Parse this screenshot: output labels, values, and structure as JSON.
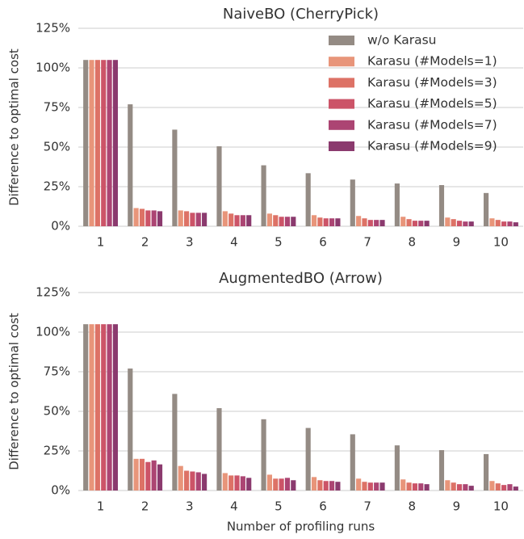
{
  "chart_data": [
    {
      "type": "bar",
      "title": "NaiveBO (CherryPick)",
      "ylabel": "Difference to optimal cost",
      "categories": [
        "1",
        "2",
        "3",
        "4",
        "5",
        "6",
        "7",
        "8",
        "9",
        "10"
      ],
      "series": [
        {
          "name": "w/o Karasu",
          "color": "#948b84",
          "values": [
            105,
            77,
            61,
            50.5,
            38.5,
            33.5,
            29.5,
            27,
            26,
            21
          ]
        },
        {
          "name": "Karasu (#Models=1)",
          "color": "#e8957a",
          "values": [
            105,
            11.5,
            10,
            9.5,
            8,
            7,
            6.5,
            6,
            5.5,
            5
          ]
        },
        {
          "name": "Karasu (#Models=3)",
          "color": "#dd7266",
          "values": [
            105,
            11,
            9.5,
            8,
            7,
            5.5,
            5,
            4.5,
            4.5,
            4
          ]
        },
        {
          "name": "Karasu (#Models=5)",
          "color": "#cc5468",
          "values": [
            105,
            10,
            8.5,
            7,
            6,
            5,
            4,
            3.5,
            3.5,
            3
          ]
        },
        {
          "name": "Karasu (#Models=7)",
          "color": "#ac4573",
          "values": [
            105,
            10,
            8.5,
            7,
            6,
            5,
            4,
            3.5,
            3,
            3
          ]
        },
        {
          "name": "Karasu (#Models=9)",
          "color": "#8b3a6e",
          "values": [
            105,
            9.5,
            8.5,
            7,
            6,
            5,
            4,
            3.5,
            3,
            2.5
          ]
        }
      ],
      "ylim": [
        0,
        125
      ],
      "yticks": [
        {
          "value": 0,
          "label": "0%"
        },
        {
          "value": 25,
          "label": "25%"
        },
        {
          "value": 50,
          "label": "50%"
        },
        {
          "value": 75,
          "label": "75%"
        },
        {
          "value": 100,
          "label": "100%"
        },
        {
          "value": 125,
          "label": "125%"
        }
      ],
      "grid": true,
      "legend": "upper right"
    },
    {
      "type": "bar",
      "title": "AugmentedBO (Arrow)",
      "ylabel": "Difference to optimal cost",
      "xlabel": "Number of profiling runs",
      "categories": [
        "1",
        "2",
        "3",
        "4",
        "5",
        "6",
        "7",
        "8",
        "9",
        "10"
      ],
      "series": [
        {
          "color": "#948b84",
          "values": [
            105,
            77,
            61,
            52,
            45,
            39.5,
            35.5,
            28.5,
            25.5,
            23
          ]
        },
        {
          "color": "#e8957a",
          "values": [
            105,
            20,
            15.5,
            11,
            10,
            8.5,
            7.5,
            7,
            6.5,
            6
          ]
        },
        {
          "color": "#dd7266",
          "values": [
            105,
            20,
            12.5,
            9.5,
            7.5,
            6.5,
            5.5,
            5,
            5,
            4.5
          ]
        },
        {
          "color": "#cc5468",
          "values": [
            105,
            18,
            12,
            9.5,
            7.5,
            6,
            5,
            4.5,
            4,
            3.5
          ]
        },
        {
          "color": "#ac4573",
          "values": [
            105,
            19,
            11.5,
            9,
            8,
            6,
            5,
            4.5,
            4,
            4
          ]
        },
        {
          "color": "#8b3a6e",
          "values": [
            105,
            16.5,
            10.5,
            8,
            6.5,
            5.5,
            5,
            4,
            3,
            2.5
          ]
        }
      ],
      "ylim": [
        0,
        125
      ],
      "yticks": [
        {
          "value": 0,
          "label": "0%"
        },
        {
          "value": 25,
          "label": "25%"
        },
        {
          "value": 50,
          "label": "50%"
        },
        {
          "value": 75,
          "label": "75%"
        },
        {
          "value": 100,
          "label": "100%"
        },
        {
          "value": 125,
          "label": "125%"
        }
      ],
      "grid": true
    }
  ]
}
